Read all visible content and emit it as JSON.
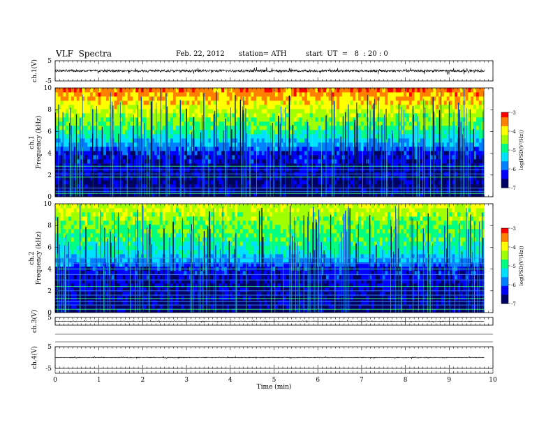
{
  "header": {
    "title": "VLF  Spectra",
    "date": "Feb. 22, 2012",
    "station": "station= ATH",
    "start": "start  UT  =   8  : 20 : 0"
  },
  "chart_data": {
    "type": "heatmap",
    "time_axis": {
      "label": "Time  (min)",
      "range": [
        0,
        10
      ],
      "ticks": [
        0,
        1,
        2,
        3,
        4,
        5,
        6,
        7,
        8,
        9,
        10
      ],
      "data_end": 9.8
    },
    "panels": [
      {
        "id": "ch1-waveform",
        "type": "line",
        "ylabel": "ch.1(V)",
        "ylim": [
          -5,
          5
        ],
        "yticks": [
          5,
          -5
        ],
        "amplitude": 0.6
      },
      {
        "id": "ch1-spectrogram",
        "type": "heatmap",
        "ylabel_top": "ch.1",
        "ylabel": "Frequency  (kHz)",
        "ylim": [
          0,
          10
        ],
        "yticks": [
          0,
          2,
          4,
          6,
          8,
          10
        ],
        "top_color_level": "red",
        "horizontal_lines_kHz": [
          0.3,
          0.5,
          0.8,
          1.8,
          2.1,
          2.5,
          2.8
        ]
      },
      {
        "id": "ch2-spectrogram",
        "type": "heatmap",
        "ylabel_top": "ch.2",
        "ylabel": "Frequency  (kHz)",
        "ylim": [
          0,
          10
        ],
        "yticks": [
          0,
          2,
          4,
          6,
          8,
          10
        ],
        "top_color_level": "green-yellow",
        "horizontal_lines_kHz": [
          0.3,
          0.7,
          1.0,
          1.3,
          1.6,
          2.0,
          2.4,
          3.0,
          3.5,
          4.0,
          4.5,
          5.0
        ]
      },
      {
        "id": "ch3-waveform",
        "type": "line",
        "ylabel": "ch.3(V)",
        "ylim": [
          -5,
          5
        ],
        "yticks": [
          5
        ],
        "amplitude": 0.4
      },
      {
        "id": "ch4-waveform",
        "type": "line",
        "ylabel": "ch.4(V)",
        "ylim": [
          -5,
          5
        ],
        "yticks": [
          5,
          -5
        ],
        "amplitude": 0.15
      }
    ],
    "colorbar": {
      "label": "log(PSD(V²/Hz))",
      "range": [
        -7,
        -3
      ],
      "ticks": [
        "-3",
        "-4",
        "-5",
        "-6",
        "-7"
      ],
      "colormap": [
        "#000066",
        "#0000ff",
        "#0080ff",
        "#00e0ff",
        "#00ff80",
        "#a0ff00",
        "#ffff00",
        "#ff8000",
        "#ff0000",
        "#ffffff"
      ]
    }
  }
}
